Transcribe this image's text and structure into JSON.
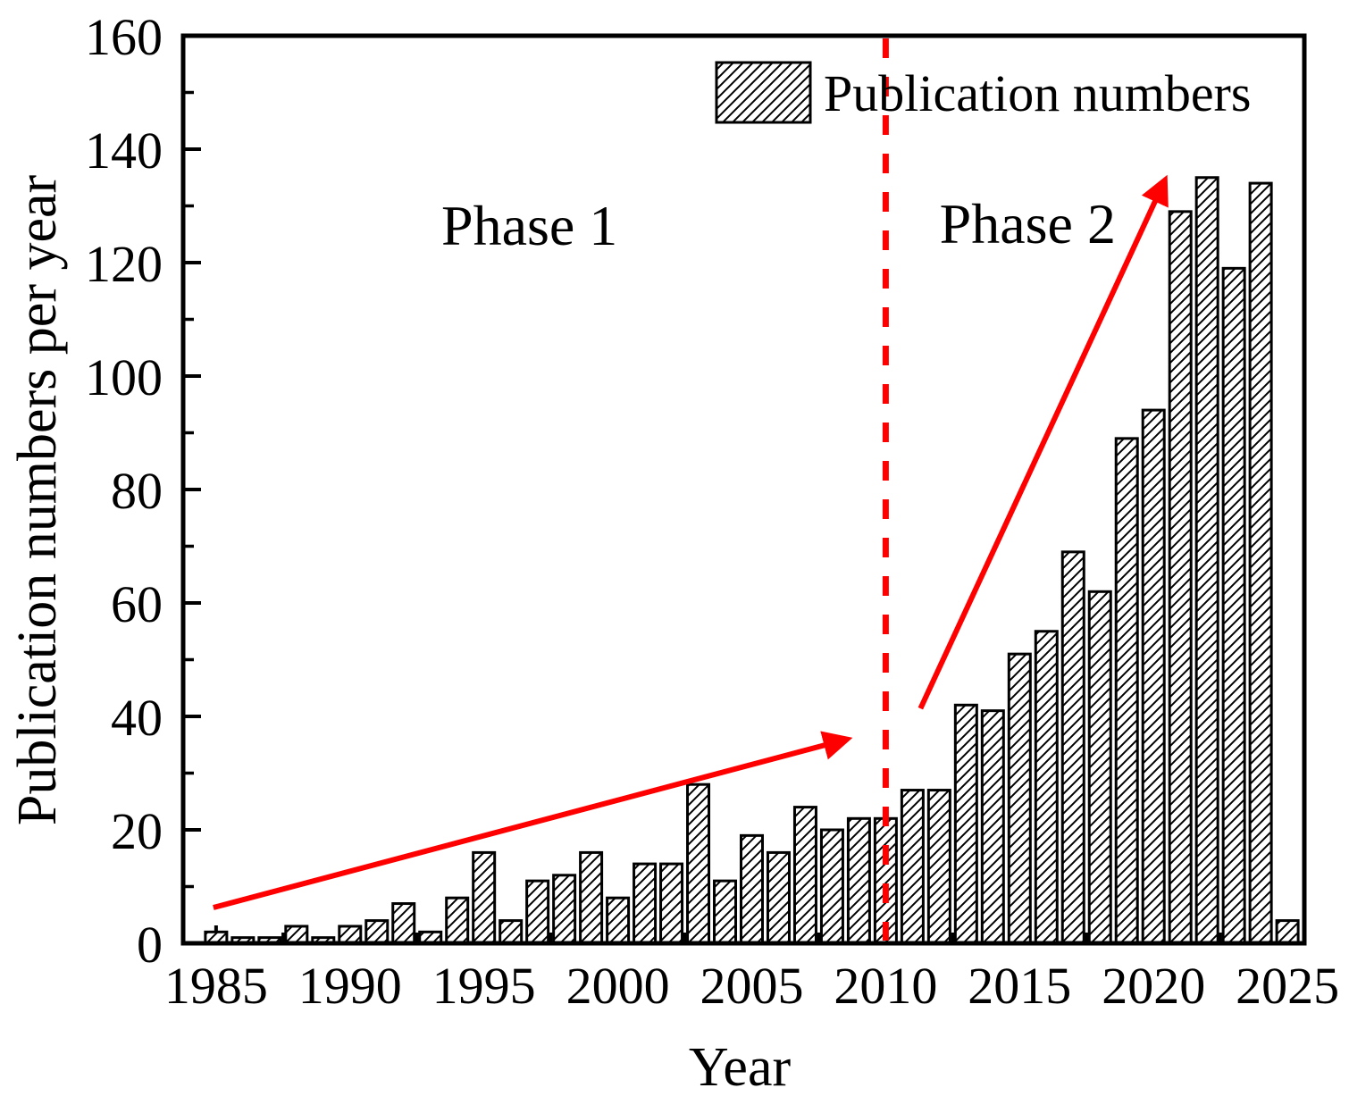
{
  "chart_data": {
    "type": "bar",
    "title": "",
    "xlabel": "Year",
    "ylabel": "Publication numbers per year",
    "legend_label": "Publication numbers",
    "legend_position": "upper-center-right",
    "grid": false,
    "bar_hatch": "diagonal-forward-slash",
    "x": [
      1985,
      1986,
      1987,
      1988,
      1989,
      1990,
      1991,
      1992,
      1993,
      1994,
      1995,
      1996,
      1997,
      1998,
      1999,
      2000,
      2001,
      2002,
      2003,
      2004,
      2005,
      2006,
      2007,
      2008,
      2009,
      2010,
      2011,
      2012,
      2013,
      2014,
      2015,
      2016,
      2017,
      2018,
      2019,
      2020,
      2021,
      2022,
      2023,
      2024,
      2025
    ],
    "values": [
      2,
      1,
      1,
      3,
      1,
      3,
      4,
      7,
      2,
      8,
      16,
      4,
      11,
      12,
      16,
      8,
      14,
      14,
      28,
      11,
      19,
      16,
      24,
      20,
      22,
      22,
      27,
      27,
      42,
      41,
      51,
      55,
      69,
      62,
      89,
      94,
      129,
      135,
      119,
      134,
      4
    ],
    "xlim": [
      1983.77,
      2025.63
    ],
    "ylim": [
      0,
      160
    ],
    "x_major_ticks": [
      1985,
      1990,
      1995,
      2000,
      2005,
      2010,
      2015,
      2020,
      2025
    ],
    "x_tick_labels": [
      "1985",
      "1990",
      "1995",
      "2000",
      "2005",
      "2010",
      "2015",
      "2020",
      "2025"
    ],
    "x_minor_ticks": [
      1987.5,
      1992.5,
      1997.5,
      2002.5,
      2007.5,
      2012.5,
      2017.5,
      2022.5
    ],
    "y_major_ticks": [
      0,
      20,
      40,
      60,
      80,
      100,
      120,
      140,
      160
    ],
    "y_tick_labels": [
      "0",
      "20",
      "40",
      "60",
      "80",
      "100",
      "120",
      "140",
      "160"
    ],
    "y_minor_ticks": [
      10,
      30,
      50,
      70,
      90,
      110,
      130,
      150
    ],
    "annotations": {
      "phase1": {
        "text": "Phase 1",
        "x": 1996.7,
        "y": 126.6
      },
      "phase2": {
        "text": "Phase 2",
        "x": 2015.3,
        "y": 126.9
      },
      "divider": {
        "x": 2010,
        "style": "dashed-vertical-line"
      },
      "arrow1": {
        "x1": 1984.9,
        "y1": 6.3,
        "x2": 2008.5,
        "y2": 35.9
      },
      "arrow2": {
        "x1": 2011.3,
        "y1": 41.4,
        "x2": 2020.4,
        "y2": 134.3
      }
    },
    "colors": {
      "bar_fill": "#FFFFFF",
      "bar_edge": "#000000",
      "hatch": "#000000",
      "accent_red": "#FF0000",
      "accent_blue": "#1874CD",
      "frame": "#000000"
    }
  }
}
